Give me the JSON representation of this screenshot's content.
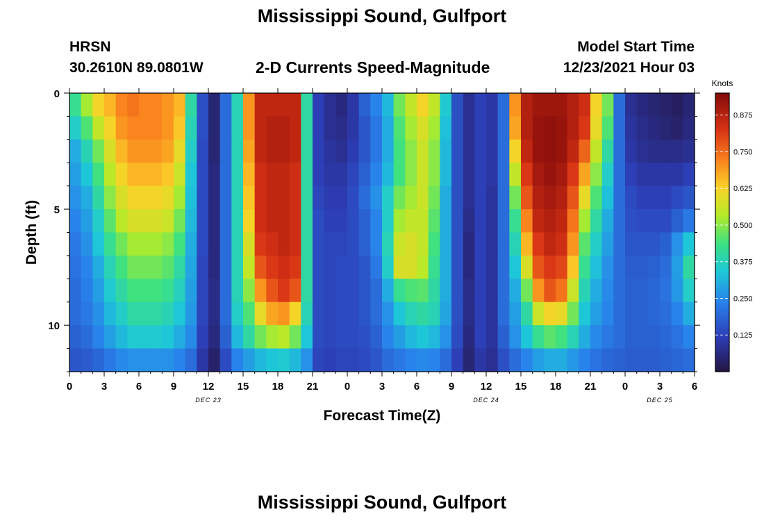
{
  "title": "Mississippi Sound, Gulfport",
  "repeated_title": "Mississippi Sound, Gulfport",
  "station": {
    "id": "HRSN",
    "coords": "30.2610N  89.0801W"
  },
  "model": {
    "label": "Model Start Time",
    "start": "12/23/2021 Hour 03"
  },
  "chart_data": {
    "type": "heatmap",
    "title": "2-D Currents Speed-Magnitude",
    "xlabel": "Forecast Time(Z)",
    "ylabel": "Depth (ft)",
    "x_ticks": [
      0,
      3,
      6,
      9,
      12,
      15,
      18,
      21,
      24,
      27,
      30,
      33,
      36,
      39,
      42,
      45,
      48,
      51,
      54
    ],
    "x_tick_labels": [
      "0",
      "3",
      "6",
      "9",
      "12",
      "15",
      "18",
      "21",
      "0",
      "3",
      "6",
      "9",
      "12",
      "15",
      "18",
      "21",
      "0",
      "3",
      "6"
    ],
    "x_range": [
      0,
      54
    ],
    "y_ticks": [
      0,
      5,
      10
    ],
    "y_tick_labels": [
      "0",
      "5",
      "10"
    ],
    "y_range": [
      0,
      12
    ],
    "date_labels": [
      {
        "text": "DEC 23",
        "hour": 12
      },
      {
        "text": "DEC 24",
        "hour": 36
      },
      {
        "text": "DEC 25",
        "hour": 51
      }
    ],
    "colorbar": {
      "label": "Knots",
      "min": 0,
      "max": 0.95,
      "ticks": [
        0.125,
        0.25,
        0.375,
        0.5,
        0.625,
        0.75,
        0.875
      ],
      "tick_labels": [
        "0.125",
        "0.250",
        "0.375",
        "0.500",
        "0.625",
        "0.750",
        "0.875"
      ]
    },
    "time_hours": [
      0,
      1,
      2,
      3,
      4,
      5,
      6,
      7,
      8,
      9,
      10,
      11,
      12,
      13,
      14,
      15,
      16,
      17,
      18,
      19,
      20,
      21,
      22,
      23,
      24,
      25,
      26,
      27,
      28,
      29,
      30,
      31,
      32,
      33,
      34,
      35,
      36,
      37,
      38,
      39,
      40,
      41,
      42,
      43,
      44,
      45,
      46,
      47,
      48,
      49,
      50,
      51,
      52,
      53
    ],
    "depths_ft": [
      0,
      1,
      2,
      3,
      4,
      5,
      6,
      7,
      8,
      9,
      10,
      11
    ],
    "speed_knots": [
      [
        0.42,
        0.52,
        0.62,
        0.66,
        0.72,
        0.74,
        0.72,
        0.72,
        0.7,
        0.66,
        0.4,
        0.15,
        0.05,
        0.2,
        0.38,
        0.7,
        0.86,
        0.86,
        0.86,
        0.86,
        0.4,
        0.12,
        0.08,
        0.06,
        0.1,
        0.18,
        0.24,
        0.32,
        0.48,
        0.55,
        0.62,
        0.55,
        0.35,
        0.15,
        0.08,
        0.12,
        0.1,
        0.2,
        0.7,
        0.88,
        0.91,
        0.91,
        0.91,
        0.88,
        0.84,
        0.62,
        0.48,
        0.2,
        0.08,
        0.06,
        0.05,
        0.04,
        0.03,
        0.05
      ],
      [
        0.36,
        0.45,
        0.55,
        0.62,
        0.7,
        0.72,
        0.72,
        0.72,
        0.7,
        0.64,
        0.38,
        0.15,
        0.05,
        0.2,
        0.38,
        0.7,
        0.86,
        0.88,
        0.88,
        0.86,
        0.4,
        0.12,
        0.08,
        0.07,
        0.1,
        0.16,
        0.22,
        0.3,
        0.45,
        0.52,
        0.58,
        0.52,
        0.33,
        0.15,
        0.08,
        0.12,
        0.1,
        0.2,
        0.68,
        0.88,
        0.92,
        0.93,
        0.92,
        0.88,
        0.82,
        0.6,
        0.45,
        0.2,
        0.09,
        0.07,
        0.06,
        0.05,
        0.04,
        0.06
      ],
      [
        0.3,
        0.38,
        0.48,
        0.58,
        0.66,
        0.7,
        0.7,
        0.7,
        0.68,
        0.6,
        0.36,
        0.14,
        0.05,
        0.2,
        0.38,
        0.68,
        0.86,
        0.88,
        0.88,
        0.86,
        0.4,
        0.12,
        0.09,
        0.08,
        0.11,
        0.16,
        0.22,
        0.3,
        0.44,
        0.5,
        0.56,
        0.5,
        0.32,
        0.15,
        0.08,
        0.12,
        0.1,
        0.2,
        0.62,
        0.86,
        0.92,
        0.93,
        0.92,
        0.86,
        0.76,
        0.55,
        0.4,
        0.2,
        0.1,
        0.08,
        0.07,
        0.07,
        0.07,
        0.08
      ],
      [
        0.28,
        0.34,
        0.44,
        0.54,
        0.62,
        0.66,
        0.66,
        0.66,
        0.64,
        0.56,
        0.34,
        0.14,
        0.06,
        0.2,
        0.38,
        0.66,
        0.84,
        0.86,
        0.86,
        0.84,
        0.4,
        0.12,
        0.1,
        0.1,
        0.13,
        0.18,
        0.24,
        0.32,
        0.44,
        0.5,
        0.56,
        0.5,
        0.32,
        0.15,
        0.08,
        0.12,
        0.1,
        0.2,
        0.55,
        0.82,
        0.9,
        0.92,
        0.9,
        0.82,
        0.68,
        0.5,
        0.36,
        0.2,
        0.12,
        0.1,
        0.1,
        0.1,
        0.1,
        0.12
      ],
      [
        0.26,
        0.3,
        0.4,
        0.5,
        0.58,
        0.62,
        0.62,
        0.62,
        0.6,
        0.52,
        0.33,
        0.14,
        0.06,
        0.2,
        0.38,
        0.64,
        0.84,
        0.86,
        0.86,
        0.84,
        0.4,
        0.13,
        0.11,
        0.11,
        0.14,
        0.2,
        0.26,
        0.36,
        0.48,
        0.52,
        0.56,
        0.48,
        0.3,
        0.15,
        0.08,
        0.12,
        0.09,
        0.2,
        0.48,
        0.78,
        0.88,
        0.9,
        0.88,
        0.78,
        0.6,
        0.45,
        0.33,
        0.2,
        0.14,
        0.12,
        0.12,
        0.12,
        0.14,
        0.16
      ],
      [
        0.24,
        0.28,
        0.36,
        0.46,
        0.54,
        0.58,
        0.58,
        0.58,
        0.56,
        0.48,
        0.32,
        0.14,
        0.06,
        0.2,
        0.38,
        0.62,
        0.84,
        0.86,
        0.86,
        0.84,
        0.4,
        0.14,
        0.12,
        0.12,
        0.14,
        0.18,
        0.24,
        0.36,
        0.52,
        0.55,
        0.55,
        0.46,
        0.3,
        0.15,
        0.07,
        0.12,
        0.09,
        0.2,
        0.42,
        0.72,
        0.86,
        0.88,
        0.86,
        0.74,
        0.52,
        0.4,
        0.3,
        0.2,
        0.15,
        0.14,
        0.14,
        0.14,
        0.18,
        0.22
      ],
      [
        0.22,
        0.26,
        0.34,
        0.42,
        0.48,
        0.52,
        0.52,
        0.52,
        0.5,
        0.44,
        0.3,
        0.14,
        0.06,
        0.2,
        0.38,
        0.58,
        0.82,
        0.84,
        0.86,
        0.84,
        0.4,
        0.14,
        0.13,
        0.13,
        0.14,
        0.18,
        0.24,
        0.38,
        0.56,
        0.58,
        0.55,
        0.44,
        0.3,
        0.15,
        0.06,
        0.12,
        0.09,
        0.2,
        0.38,
        0.66,
        0.82,
        0.86,
        0.84,
        0.7,
        0.46,
        0.36,
        0.28,
        0.2,
        0.16,
        0.16,
        0.16,
        0.18,
        0.26,
        0.34
      ],
      [
        0.21,
        0.24,
        0.3,
        0.38,
        0.44,
        0.48,
        0.48,
        0.48,
        0.46,
        0.4,
        0.29,
        0.13,
        0.06,
        0.2,
        0.38,
        0.55,
        0.78,
        0.82,
        0.84,
        0.82,
        0.4,
        0.14,
        0.13,
        0.14,
        0.14,
        0.16,
        0.22,
        0.36,
        0.58,
        0.58,
        0.54,
        0.42,
        0.3,
        0.15,
        0.06,
        0.12,
        0.09,
        0.2,
        0.34,
        0.58,
        0.78,
        0.82,
        0.8,
        0.64,
        0.42,
        0.33,
        0.26,
        0.2,
        0.17,
        0.17,
        0.18,
        0.2,
        0.28,
        0.4
      ],
      [
        0.2,
        0.23,
        0.28,
        0.35,
        0.4,
        0.44,
        0.44,
        0.44,
        0.42,
        0.37,
        0.28,
        0.13,
        0.07,
        0.2,
        0.38,
        0.5,
        0.7,
        0.78,
        0.82,
        0.78,
        0.4,
        0.14,
        0.13,
        0.14,
        0.14,
        0.16,
        0.2,
        0.3,
        0.42,
        0.45,
        0.46,
        0.4,
        0.3,
        0.15,
        0.07,
        0.12,
        0.09,
        0.2,
        0.3,
        0.48,
        0.7,
        0.78,
        0.74,
        0.56,
        0.38,
        0.3,
        0.25,
        0.2,
        0.18,
        0.18,
        0.19,
        0.21,
        0.27,
        0.36
      ],
      [
        0.2,
        0.22,
        0.26,
        0.32,
        0.36,
        0.4,
        0.4,
        0.4,
        0.38,
        0.34,
        0.27,
        0.13,
        0.07,
        0.2,
        0.36,
        0.45,
        0.6,
        0.68,
        0.7,
        0.62,
        0.38,
        0.14,
        0.13,
        0.14,
        0.14,
        0.16,
        0.2,
        0.26,
        0.34,
        0.38,
        0.4,
        0.38,
        0.29,
        0.15,
        0.07,
        0.12,
        0.09,
        0.2,
        0.28,
        0.4,
        0.56,
        0.62,
        0.6,
        0.48,
        0.34,
        0.28,
        0.24,
        0.2,
        0.18,
        0.18,
        0.19,
        0.2,
        0.24,
        0.3
      ],
      [
        0.18,
        0.2,
        0.24,
        0.28,
        0.32,
        0.35,
        0.35,
        0.35,
        0.34,
        0.3,
        0.25,
        0.12,
        0.06,
        0.18,
        0.32,
        0.4,
        0.48,
        0.52,
        0.54,
        0.48,
        0.34,
        0.14,
        0.13,
        0.14,
        0.14,
        0.15,
        0.18,
        0.24,
        0.28,
        0.32,
        0.34,
        0.32,
        0.26,
        0.14,
        0.06,
        0.12,
        0.09,
        0.18,
        0.26,
        0.34,
        0.42,
        0.46,
        0.44,
        0.38,
        0.3,
        0.25,
        0.22,
        0.2,
        0.18,
        0.18,
        0.18,
        0.19,
        0.21,
        0.24
      ],
      [
        0.16,
        0.17,
        0.19,
        0.22,
        0.25,
        0.26,
        0.26,
        0.26,
        0.26,
        0.24,
        0.2,
        0.1,
        0.04,
        0.14,
        0.24,
        0.28,
        0.32,
        0.34,
        0.35,
        0.32,
        0.26,
        0.13,
        0.12,
        0.13,
        0.13,
        0.14,
        0.16,
        0.2,
        0.22,
        0.24,
        0.25,
        0.24,
        0.2,
        0.12,
        0.05,
        0.1,
        0.08,
        0.15,
        0.2,
        0.24,
        0.28,
        0.3,
        0.3,
        0.27,
        0.24,
        0.21,
        0.19,
        0.18,
        0.17,
        0.17,
        0.17,
        0.18,
        0.19,
        0.2
      ]
    ]
  }
}
